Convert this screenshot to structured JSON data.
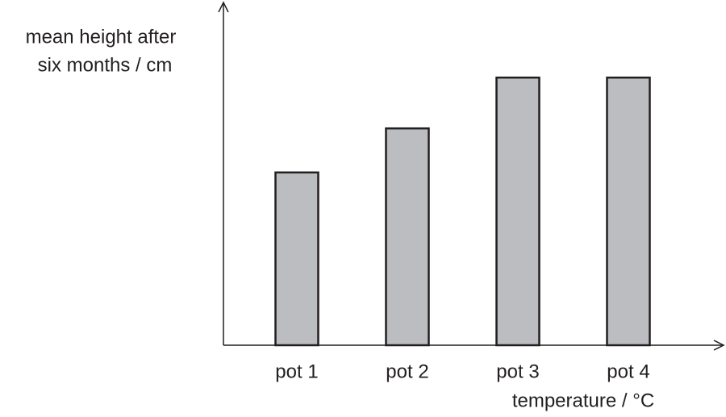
{
  "chart_data": {
    "type": "bar",
    "y_label": [
      "mean height after",
      "six months / cm"
    ],
    "x_label": "temperature / °C",
    "categories": [
      "pot 1",
      "pot 2",
      "pot 3",
      "pot 4"
    ],
    "values": [
      5.1,
      6.4,
      7.9,
      7.9
    ],
    "color": "#bcbdc0",
    "ylim": [
      0,
      10
    ]
  }
}
